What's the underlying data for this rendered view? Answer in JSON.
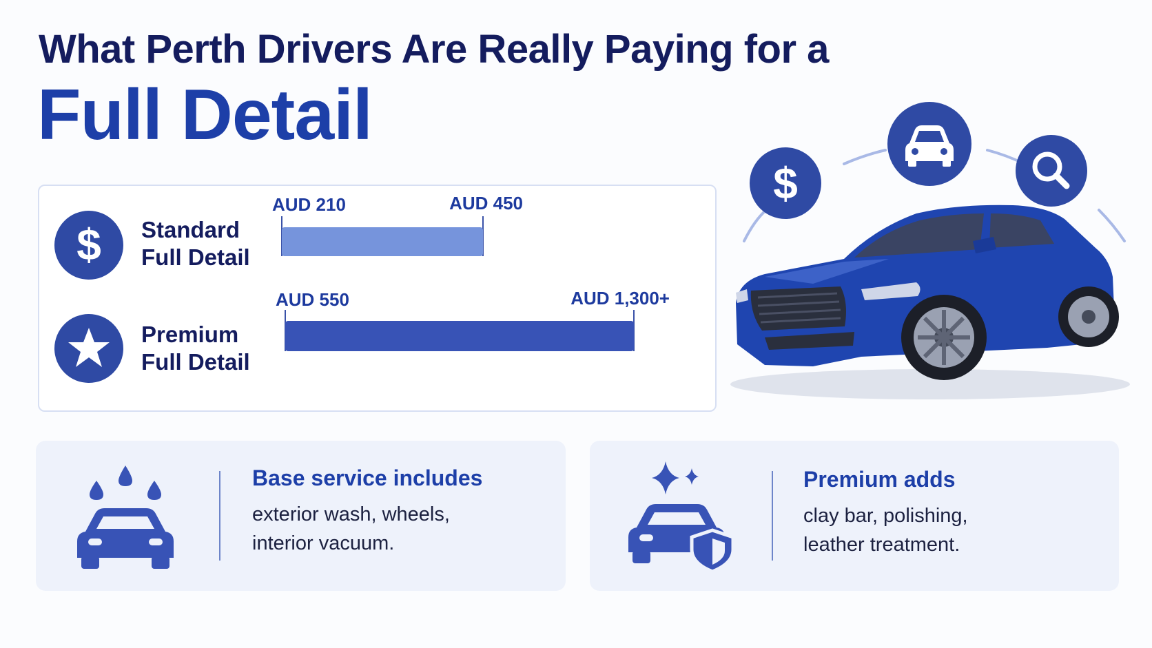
{
  "title": {
    "line1": "What Perth Drivers Are Really Paying for a",
    "line2": "Full Detail"
  },
  "colors": {
    "navy": "#141c5e",
    "brand_blue": "#1d3fa8",
    "icon_blue": "#2f4aa4",
    "standard_bar": "#7694dc",
    "premium_bar": "#3853b6"
  },
  "icons": {
    "standard": "dollar-icon",
    "premium": "star-icon",
    "top_left": "dollar-icon",
    "top_center": "car-icon",
    "top_right": "search-icon",
    "base_card": "car-wash-icon",
    "premium_card": "car-shield-sparkle-icon"
  },
  "chart_data": {
    "type": "bar",
    "orientation": "horizontal-range",
    "categories": [
      "Standard Full Detail",
      "Premium Full Detail"
    ],
    "category_lines": [
      [
        "Standard",
        "Full Detail"
      ],
      [
        "Premium",
        "Full Detail"
      ]
    ],
    "series": [
      {
        "ranges": [
          {
            "min": 210,
            "max": 450,
            "min_label": "AUD 210",
            "max_label": "AUD 450"
          },
          {
            "min": 550,
            "max": 1300,
            "min_label": "AUD 550",
            "max_label": "AUD 1,300+"
          }
        ]
      }
    ],
    "title": "",
    "xlabel": "",
    "ylabel": "",
    "grid": false
  },
  "cards": [
    {
      "title": "Base service includes",
      "body_lines": [
        "exterior wash, wheels,",
        "interior vacuum."
      ]
    },
    {
      "title": "Premium adds",
      "body_lines": [
        "clay bar, polishing,",
        "leather treatment."
      ]
    }
  ]
}
